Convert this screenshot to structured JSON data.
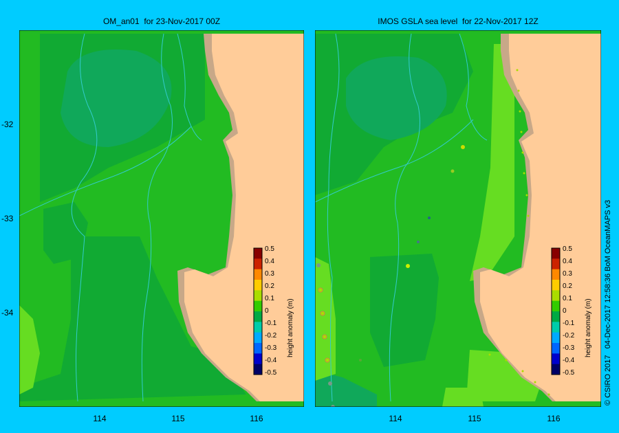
{
  "panels": [
    {
      "title": "OM_an01  for 23-Nov-2017 00Z"
    },
    {
      "title": "IMOS GSLA sea level  for 22-Nov-2017 12Z"
    }
  ],
  "map": {
    "y_tick_labels": [
      "-32",
      "-33",
      "-34"
    ],
    "x_tick_labels": [
      "114",
      "115",
      "116"
    ],
    "lat_ticks": [
      -32,
      -33,
      -34
    ],
    "lon_ticks": [
      114,
      115,
      116
    ],
    "colors": {
      "background": "#00ccff",
      "land": "#ffcc99",
      "shelf": "#c8a888",
      "contour_line": "#33cccc",
      "level_m_0.00": "#22bb22",
      "level_m_-0.05": "#11aa33",
      "level_m_-0.10": "#10a85a",
      "level_m_0.05": "#66dd22"
    }
  },
  "colorbar": {
    "label": "height anomaly (m)",
    "tick_labels": [
      "0.5",
      "0.4",
      "0.3",
      "0.2",
      "0.1",
      "0",
      "-0.1",
      "-0.2",
      "-0.3",
      "-0.4",
      "-0.5"
    ],
    "colors": [
      "#000066",
      "#0000cc",
      "#0066ff",
      "#00aaff",
      "#00ccaa",
      "#00aa44",
      "#33cc00",
      "#aadd00",
      "#ffcc00",
      "#ff8800",
      "#cc2200",
      "#880000"
    ]
  },
  "credit": "© CSIRO 2017   04-Dec-2017 12:58:36 BoM OceanMAPS v3"
}
